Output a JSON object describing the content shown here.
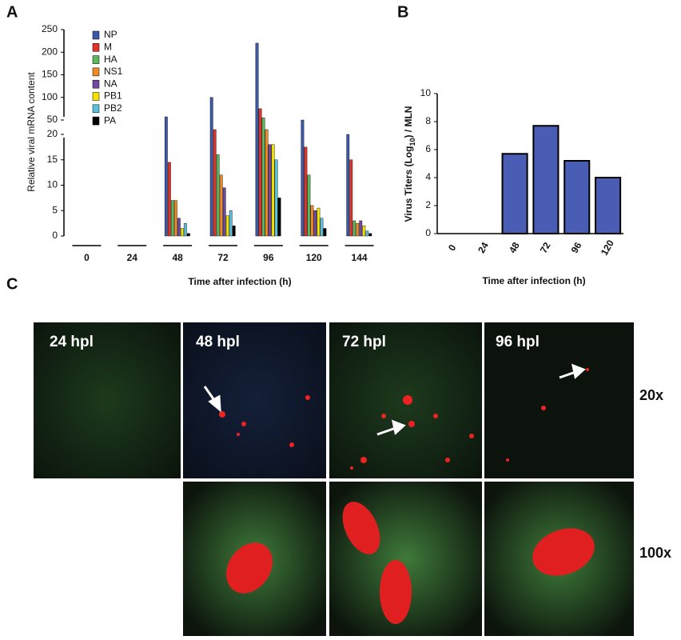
{
  "panel_labels": [
    "A",
    "B",
    "C"
  ],
  "chart_data": [
    {
      "type": "grouped-bar",
      "ylabel": "Relative viral mRNA content",
      "xlabel": "Time after infection (h)",
      "categories": [
        "0",
        "24",
        "48",
        "72",
        "96",
        "120",
        "144"
      ],
      "ylim": [
        0,
        250
      ],
      "ybreak": [
        20,
        50
      ],
      "yticks": [
        0,
        5,
        10,
        15,
        20,
        50,
        100,
        150,
        200,
        250
      ],
      "legend": "top-left",
      "series": [
        {
          "name": "NP",
          "color": "#3d5aa6",
          "values": [
            0,
            0,
            57,
            100,
            220,
            50,
            20
          ]
        },
        {
          "name": "M",
          "color": "#e0332a",
          "values": [
            0,
            0,
            14.5,
            30,
            75,
            17.5,
            15
          ]
        },
        {
          "name": "HA",
          "color": "#5cb85c",
          "values": [
            0,
            0,
            7,
            16,
            55,
            12,
            3
          ]
        },
        {
          "name": "NS1",
          "color": "#f08a24",
          "values": [
            0,
            0,
            7,
            12,
            30,
            6,
            2.5
          ]
        },
        {
          "name": "NA",
          "color": "#6f4a9e",
          "values": [
            0,
            0,
            3.5,
            9.5,
            18,
            5,
            3
          ]
        },
        {
          "name": "PB1",
          "color": "#f2e200",
          "values": [
            0,
            0,
            1.5,
            4,
            18,
            5.5,
            2
          ]
        },
        {
          "name": "PB2",
          "color": "#5bc0de",
          "values": [
            0,
            0,
            2.5,
            5,
            15,
            3.5,
            1
          ]
        },
        {
          "name": "PA",
          "color": "#000000",
          "values": [
            0,
            0,
            0.5,
            2,
            7.5,
            1.5,
            0.5
          ]
        }
      ]
    },
    {
      "type": "bar",
      "ylabel_parts": [
        "Virus Titers (Log",
        "10",
        ") / MLN"
      ],
      "xlabel": "Time after infection (h)",
      "categories": [
        "0",
        "24",
        "48",
        "72",
        "96",
        "120"
      ],
      "values": [
        0,
        0,
        5.7,
        7.7,
        5.2,
        4.0
      ],
      "color": "#4a5db5",
      "ylim": [
        0,
        10
      ],
      "yticks": [
        0,
        2,
        4,
        6,
        8,
        10
      ]
    }
  ],
  "micrographs": {
    "timepoints": [
      "24 hpl",
      "48 hpl",
      "72 hpl",
      "96 hpl"
    ],
    "magnifications": [
      "20x",
      "100x"
    ]
  }
}
